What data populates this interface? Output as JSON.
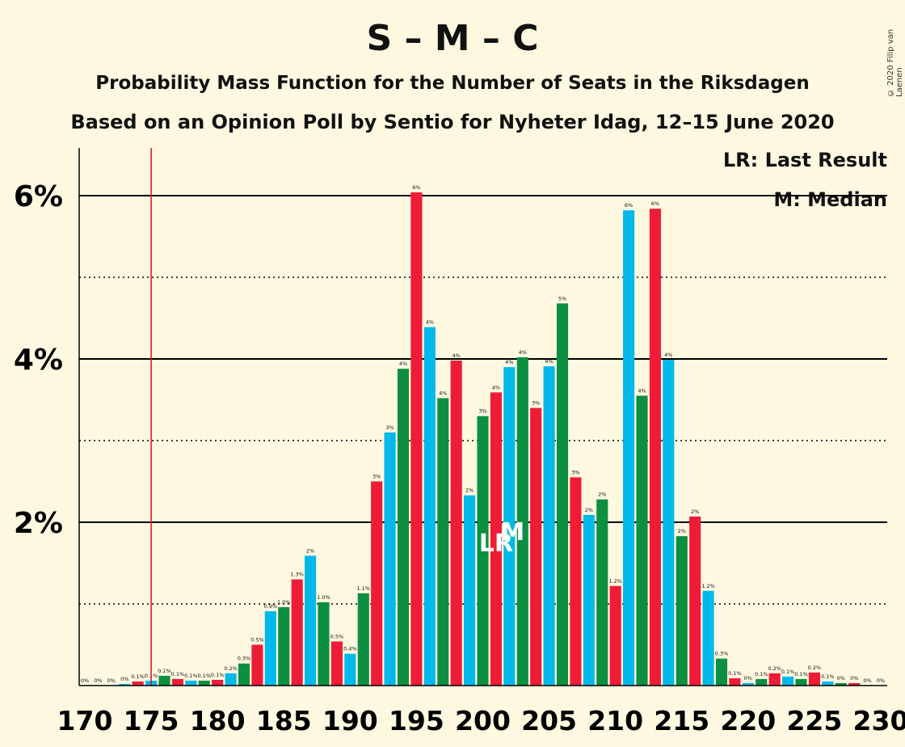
{
  "chart_data": {
    "type": "bar",
    "title": "S – M – C",
    "subtitle": "Probability Mass Function for the Number of Seats in the Riksdagen",
    "subtitle2": "Based on an Opinion Poll by Sentio for Nyheter Idag, 12–15 June 2020",
    "copyright": "© 2020 Filip van Laenen",
    "xlabel": "",
    "ylabel": "",
    "xlim": [
      170,
      230
    ],
    "ylim": [
      0,
      6.6
    ],
    "yticks": [
      {
        "value": 2,
        "label": "2%"
      },
      {
        "value": 4,
        "label": "4%"
      },
      {
        "value": 6,
        "label": "6%"
      }
    ],
    "xticks": [
      170,
      175,
      180,
      185,
      190,
      195,
      200,
      205,
      210,
      215,
      220,
      225,
      230
    ],
    "grid": true,
    "legend": [
      "LR: Last Result",
      "M: Median"
    ],
    "last_result": {
      "seats": 175,
      "marker": "LR",
      "bar_seat": 201
    },
    "median": {
      "seats": 202,
      "marker": "M"
    },
    "colors": {
      "cyan": "#00B9EA",
      "red": "#EE1C37",
      "green": "#0D8F41",
      "lr_line": "#D0161E"
    },
    "bars": [
      {
        "x": 170,
        "v": 0.0,
        "label": "0%",
        "color": "#00B9EA"
      },
      {
        "x": 171,
        "v": 0.0,
        "label": "0%",
        "color": "#EE1C37"
      },
      {
        "x": 172,
        "v": 0.0,
        "label": "0%",
        "color": "#0D8F41"
      },
      {
        "x": 173,
        "v": 0.02,
        "label": "0%",
        "color": "#00B9EA"
      },
      {
        "x": 174,
        "v": 0.05,
        "label": "0.1%",
        "color": "#EE1C37"
      },
      {
        "x": 175,
        "v": 0.06,
        "label": "0.1%",
        "color": "#00B9EA"
      },
      {
        "x": 176,
        "v": 0.12,
        "label": "0.1%",
        "color": "#0D8F41"
      },
      {
        "x": 177,
        "v": 0.08,
        "label": "0.1%",
        "color": "#EE1C37"
      },
      {
        "x": 178,
        "v": 0.06,
        "label": "0.1%",
        "color": "#00B9EA"
      },
      {
        "x": 179,
        "v": 0.06,
        "label": "0.1%",
        "color": "#0D8F41"
      },
      {
        "x": 180,
        "v": 0.07,
        "label": "0.1%",
        "color": "#EE1C37"
      },
      {
        "x": 181,
        "v": 0.15,
        "label": "0.2%",
        "color": "#00B9EA"
      },
      {
        "x": 182,
        "v": 0.27,
        "label": "0.3%",
        "color": "#0D8F41"
      },
      {
        "x": 183,
        "v": 0.5,
        "label": "0.5%",
        "color": "#EE1C37"
      },
      {
        "x": 184,
        "v": 0.91,
        "label": "0.9%",
        "color": "#00B9EA"
      },
      {
        "x": 185,
        "v": 0.96,
        "label": "1.0%",
        "color": "#0D8F41"
      },
      {
        "x": 186,
        "v": 1.3,
        "label": "1.3%",
        "color": "#EE1C37"
      },
      {
        "x": 187,
        "v": 1.59,
        "label": "2%",
        "color": "#00B9EA"
      },
      {
        "x": 188,
        "v": 1.02,
        "label": "1.0%",
        "color": "#0D8F41"
      },
      {
        "x": 189,
        "v": 0.54,
        "label": "0.5%",
        "color": "#EE1C37"
      },
      {
        "x": 190,
        "v": 0.39,
        "label": "0.4%",
        "color": "#00B9EA"
      },
      {
        "x": 191,
        "v": 1.13,
        "label": "1.1%",
        "color": "#0D8F41"
      },
      {
        "x": 192,
        "v": 2.5,
        "label": "3%",
        "color": "#EE1C37"
      },
      {
        "x": 193,
        "v": 3.1,
        "label": "3%",
        "color": "#00B9EA"
      },
      {
        "x": 194,
        "v": 3.88,
        "label": "4%",
        "color": "#0D8F41"
      },
      {
        "x": 195,
        "v": 6.04,
        "label": "6%",
        "color": "#EE1C37"
      },
      {
        "x": 196,
        "v": 4.39,
        "label": "4%",
        "color": "#00B9EA"
      },
      {
        "x": 197,
        "v": 3.52,
        "label": "4%",
        "color": "#0D8F41"
      },
      {
        "x": 198,
        "v": 3.98,
        "label": "4%",
        "color": "#EE1C37"
      },
      {
        "x": 199,
        "v": 2.33,
        "label": "2%",
        "color": "#00B9EA"
      },
      {
        "x": 200,
        "v": 3.3,
        "label": "3%",
        "color": "#0D8F41"
      },
      {
        "x": 201,
        "v": 3.59,
        "label": "4%",
        "color": "#EE1C37"
      },
      {
        "x": 202,
        "v": 3.9,
        "label": "4%",
        "color": "#00B9EA"
      },
      {
        "x": 203,
        "v": 4.02,
        "label": "4%",
        "color": "#0D8F41"
      },
      {
        "x": 204,
        "v": 3.4,
        "label": "3%",
        "color": "#EE1C37"
      },
      {
        "x": 205,
        "v": 3.91,
        "label": "4%",
        "color": "#00B9EA"
      },
      {
        "x": 206,
        "v": 4.68,
        "label": "5%",
        "color": "#0D8F41"
      },
      {
        "x": 207,
        "v": 2.55,
        "label": "3%",
        "color": "#EE1C37"
      },
      {
        "x": 208,
        "v": 2.09,
        "label": "2%",
        "color": "#00B9EA"
      },
      {
        "x": 209,
        "v": 2.28,
        "label": "2%",
        "color": "#0D8F41"
      },
      {
        "x": 210,
        "v": 1.22,
        "label": "1.2%",
        "color": "#EE1C37"
      },
      {
        "x": 211,
        "v": 5.82,
        "label": "6%",
        "color": "#00B9EA"
      },
      {
        "x": 212,
        "v": 3.55,
        "label": "4%",
        "color": "#0D8F41"
      },
      {
        "x": 213,
        "v": 5.84,
        "label": "6%",
        "color": "#EE1C37"
      },
      {
        "x": 214,
        "v": 3.99,
        "label": "4%",
        "color": "#00B9EA"
      },
      {
        "x": 215,
        "v": 1.83,
        "label": "2%",
        "color": "#0D8F41"
      },
      {
        "x": 216,
        "v": 2.07,
        "label": "2%",
        "color": "#EE1C37"
      },
      {
        "x": 217,
        "v": 1.16,
        "label": "1.2%",
        "color": "#00B9EA"
      },
      {
        "x": 218,
        "v": 0.33,
        "label": "0.3%",
        "color": "#0D8F41"
      },
      {
        "x": 219,
        "v": 0.09,
        "label": "0.1%",
        "color": "#EE1C37"
      },
      {
        "x": 220,
        "v": 0.03,
        "label": "0%",
        "color": "#00B9EA"
      },
      {
        "x": 221,
        "v": 0.08,
        "label": "0.1%",
        "color": "#0D8F41"
      },
      {
        "x": 222,
        "v": 0.15,
        "label": "0.2%",
        "color": "#EE1C37"
      },
      {
        "x": 223,
        "v": 0.11,
        "label": "0.1%",
        "color": "#00B9EA"
      },
      {
        "x": 224,
        "v": 0.08,
        "label": "0.1%",
        "color": "#0D8F41"
      },
      {
        "x": 225,
        "v": 0.16,
        "label": "0.2%",
        "color": "#EE1C37"
      },
      {
        "x": 226,
        "v": 0.05,
        "label": "0.1%",
        "color": "#00B9EA"
      },
      {
        "x": 227,
        "v": 0.03,
        "label": "0%",
        "color": "#0D8F41"
      },
      {
        "x": 228,
        "v": 0.03,
        "label": "0%",
        "color": "#EE1C37"
      },
      {
        "x": 229,
        "v": 0.0,
        "label": "0%",
        "color": "#00B9EA"
      },
      {
        "x": 230,
        "v": 0.0,
        "label": "0%",
        "color": "#0D8F41"
      }
    ]
  }
}
